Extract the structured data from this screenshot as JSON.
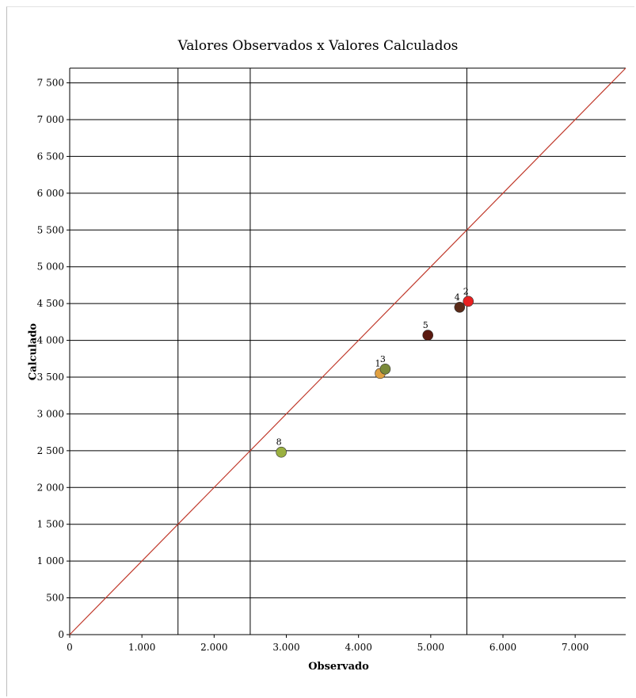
{
  "chart_data": {
    "type": "scatter",
    "title": "Valores Observados x Valores Calculados",
    "xlabel": "Observado",
    "ylabel": "Calculado",
    "xlim": [
      0,
      7700
    ],
    "ylim": [
      0,
      7700
    ],
    "x_ticks": [
      0,
      1000,
      2000,
      3000,
      4000,
      5000,
      6000,
      7000
    ],
    "x_tick_labels": [
      "0",
      "1.000",
      "2.000",
      "3.000",
      "4.000",
      "5.000",
      "6.000",
      "7.000"
    ],
    "y_ticks": [
      0,
      500,
      1000,
      1500,
      2000,
      2500,
      3000,
      3500,
      4000,
      4500,
      5000,
      5500,
      6000,
      6500,
      7000,
      7500
    ],
    "y_tick_labels": [
      "0",
      "500",
      "1 000",
      "1 500",
      "2 000",
      "2 500",
      "3 000",
      "3 500",
      "4 000",
      "4 500",
      "5 000",
      "5 500",
      "6 000",
      "6 500",
      "7 000",
      "7 500"
    ],
    "vertical_gridlines_x": [
      1500,
      2500,
      5500
    ],
    "grid": true,
    "reference_line": {
      "type": "y=x",
      "color": "#c0392b"
    },
    "points": [
      {
        "label": "1",
        "x": 4300,
        "y": 3550,
        "color": "#e0a040"
      },
      {
        "label": "3",
        "x": 4370,
        "y": 3610,
        "color": "#7a8a3a"
      },
      {
        "label": "5",
        "x": 4960,
        "y": 4070,
        "color": "#5a1a10"
      },
      {
        "label": "4",
        "x": 5400,
        "y": 4450,
        "color": "#5a2a18"
      },
      {
        "label": "2",
        "x": 5520,
        "y": 4530,
        "color": "#e82020"
      },
      {
        "label": "8",
        "x": 2930,
        "y": 2480,
        "color": "#9ab040"
      }
    ]
  }
}
